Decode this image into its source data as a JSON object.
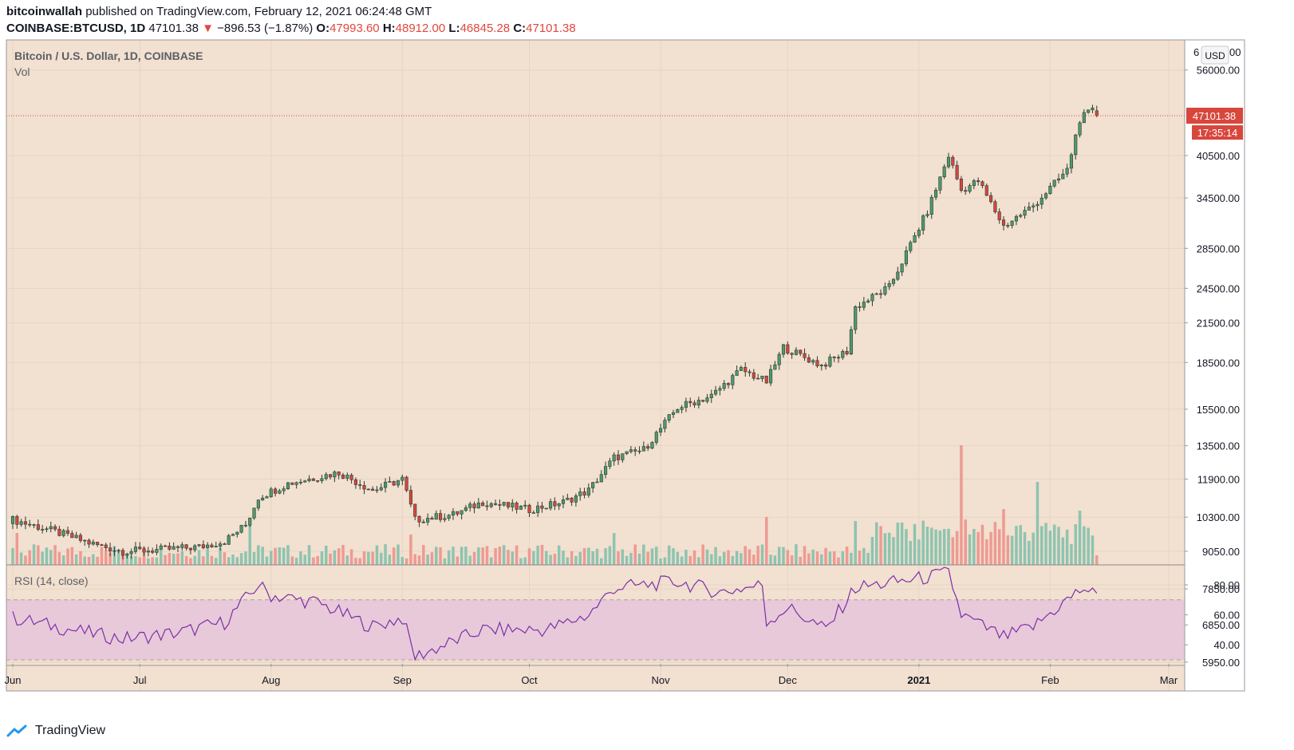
{
  "header": {
    "author": "bitcoinwallah",
    "published_text": "published on TradingView.com, February 12, 2021 06:24:48 GMT",
    "symbol": "COINBASE:BTCUSD, 1D",
    "last": "47101.38",
    "change_arrow": "▼",
    "change": "−896.53 (−1.87%)",
    "o_label": "O:",
    "o": "47993.60",
    "h_label": "H:",
    "h": "48912.00",
    "l_label": "L:",
    "l": "46845.28",
    "c_label": "C:",
    "c": "47101.38"
  },
  "pane": {
    "title": "Bitcoin / U.S. Dollar, 1D, COINBASE",
    "vol_label": "Vol",
    "rsi_label": "RSI (14, close)",
    "currency_badge": "USD",
    "top_cut_label": "6",
    "top_cut_label2": "00"
  },
  "price_tag": {
    "value": "47101.38",
    "countdown": "17:35:14"
  },
  "footer": {
    "brand": "TradingView"
  },
  "colors": {
    "background": "#f2e0d0",
    "up": "#4f9a6d",
    "down": "#d8473c",
    "vol_up": "#8ec4b0",
    "vol_down": "#ee9a92",
    "rsi_line": "#7b2fa8",
    "rsi_band": "#e8c9d9",
    "price_line": "#e0473e"
  },
  "chart_data": {
    "type": "candlestick",
    "title": "Bitcoin / U.S. Dollar, 1D, COINBASE",
    "price_axis_ticks": [
      56000,
      40500,
      34500,
      28500,
      24500,
      21500,
      18500,
      15500,
      13500,
      11900,
      10300,
      9050,
      7850,
      6850,
      5950
    ],
    "price_axis_labels": [
      "56000.00",
      "40500.00",
      "34500.00",
      "28500.00",
      "24500.00",
      "21500.00",
      "18500.00",
      "15500.00",
      "13500.00",
      "11900.00",
      "10300.00",
      "9050.00",
      "7850.00",
      "6850.00",
      "5950.00"
    ],
    "scale": "log",
    "x_ticks": [
      "Jun",
      "Jul",
      "Aug",
      "Sep",
      "Oct",
      "Nov",
      "Dec",
      "2021",
      "Feb",
      "Mar"
    ],
    "x_tick_dates": [
      "2020-06-01",
      "2020-07-01",
      "2020-08-01",
      "2020-09-01",
      "2020-10-01",
      "2020-11-01",
      "2020-12-01",
      "2021-01-01",
      "2021-02-01",
      "2021-03-01"
    ],
    "closes_anchor": [
      [
        "2020-06-01",
        10200
      ],
      [
        "2020-06-10",
        9800
      ],
      [
        "2020-06-20",
        9300
      ],
      [
        "2020-06-27",
        9050
      ],
      [
        "2020-07-05",
        9100
      ],
      [
        "2020-07-15",
        9200
      ],
      [
        "2020-07-21",
        9400
      ],
      [
        "2020-07-26",
        10000
      ],
      [
        "2020-07-29",
        11100
      ],
      [
        "2020-08-05",
        11700
      ],
      [
        "2020-08-17",
        12200
      ],
      [
        "2020-08-25",
        11400
      ],
      [
        "2020-09-01",
        11900
      ],
      [
        "2020-09-04",
        10200
      ],
      [
        "2020-09-13",
        10400
      ],
      [
        "2020-09-20",
        10900
      ],
      [
        "2020-10-01",
        10600
      ],
      [
        "2020-10-09",
        10900
      ],
      [
        "2020-10-15",
        11400
      ],
      [
        "2020-10-21",
        12900
      ],
      [
        "2020-10-28",
        13300
      ],
      [
        "2020-11-05",
        15600
      ],
      [
        "2020-11-13",
        16300
      ],
      [
        "2020-11-20",
        18000
      ],
      [
        "2020-11-26",
        17200
      ],
      [
        "2020-11-30",
        19600
      ],
      [
        "2020-12-09",
        18300
      ],
      [
        "2020-12-15",
        19300
      ],
      [
        "2020-12-17",
        22800
      ],
      [
        "2020-12-25",
        24600
      ],
      [
        "2020-12-30",
        28900
      ],
      [
        "2021-01-03",
        32800
      ],
      [
        "2021-01-08",
        40500
      ],
      [
        "2021-01-11",
        35500
      ],
      [
        "2021-01-15",
        36800
      ],
      [
        "2021-01-21",
        31000
      ],
      [
        "2021-01-28",
        33500
      ],
      [
        "2021-02-05",
        38300
      ],
      [
        "2021-02-08",
        46500
      ],
      [
        "2021-02-11",
        47990
      ],
      [
        "2021-02-12",
        47101.38
      ]
    ],
    "rsi_levels": [
      70,
      30
    ],
    "rsi_axis_labels": [
      "80.00",
      "60.00",
      "40.00"
    ],
    "rsi_anchor": [
      [
        "2020-06-01",
        58
      ],
      [
        "2020-06-15",
        50
      ],
      [
        "2020-06-27",
        44
      ],
      [
        "2020-07-10",
        48
      ],
      [
        "2020-07-21",
        55
      ],
      [
        "2020-07-29",
        80
      ],
      [
        "2020-08-01",
        73
      ],
      [
        "2020-08-12",
        68
      ],
      [
        "2020-08-25",
        52
      ],
      [
        "2020-09-01",
        58
      ],
      [
        "2020-09-04",
        32
      ],
      [
        "2020-09-20",
        50
      ],
      [
        "2020-10-05",
        50
      ],
      [
        "2020-10-15",
        60
      ],
      [
        "2020-10-21",
        78
      ],
      [
        "2020-11-05",
        82
      ],
      [
        "2020-11-15",
        75
      ],
      [
        "2020-11-25",
        80
      ],
      [
        "2020-11-26",
        55
      ],
      [
        "2020-12-01",
        65
      ],
      [
        "2020-12-10",
        50
      ],
      [
        "2020-12-17",
        78
      ],
      [
        "2021-01-03",
        85
      ],
      [
        "2021-01-08",
        88
      ],
      [
        "2021-01-11",
        60
      ],
      [
        "2021-01-21",
        45
      ],
      [
        "2021-01-28",
        52
      ],
      [
        "2021-02-05",
        70
      ],
      [
        "2021-02-09",
        78
      ],
      [
        "2021-02-12",
        72
      ]
    ]
  }
}
